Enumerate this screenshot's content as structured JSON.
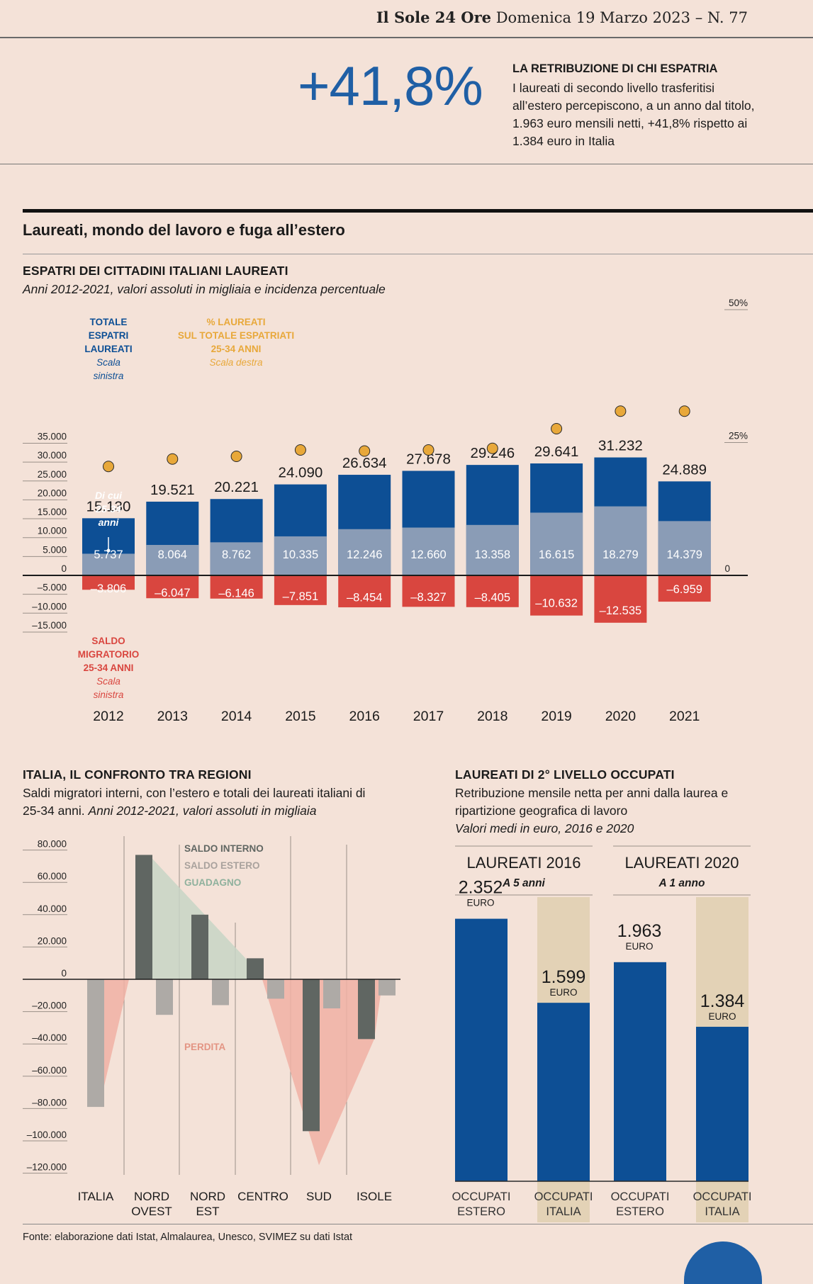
{
  "masthead": {
    "brand": "Il Sole 24 Ore",
    "date": "Domenica 19 Marzo 2023",
    "issue": "– N. 77"
  },
  "headline": {
    "number": "+41,8%",
    "title": "LA RETRIBUZIONE DI CHI ESPATRIA",
    "body": "I laureati di secondo livello trasferitisi all’estero percepiscono, a un anno dal titolo, 1.963 euro mensili netti, +41,8% rispetto ai 1.384 euro in Italia"
  },
  "section_title": "Laureati, mondo del lavoro e fuga all’estero",
  "chart1_header": {
    "title": "ESPATRI DEI CITTADINI ITALIANI LAUREATI",
    "subtitle": "Anni 2012-2021, valori assoluti in migliaia e incidenza percentuale"
  },
  "chart2_header": {
    "title": "ITALIA, IL CONFRONTO TRA REGIONI",
    "subtitle": "Saldi migratori interni, con l’estero e totali dei laureati italiani di 25-34 anni.",
    "subtitle_italic": "Anni 2012-2021, valori assoluti in migliaia"
  },
  "chart3_header": {
    "title": "LAUREATI DI 2° LIVELLO OCCUPATI",
    "subtitle": "Retribuzione mensile netta per anni dalla laurea e ripartizione geografica di lavoro",
    "subtitle_italic": "Valori medi in euro, 2016 e 2020"
  },
  "footer": "Fonte: elaborazione dati Istat, Almalaurea, Unesco, SVIMEZ su dati Istat",
  "colors": {
    "dark_blue": "#0d4f95",
    "light_blue": "#8a9cb6",
    "red": "#d9463f",
    "orange": "#e8a83a",
    "dark_gray": "#606662",
    "light_gray": "#aeaaa6",
    "green": "#c7d5c6",
    "pink": "#f0b0a4",
    "tan": "#e3d2b6",
    "accent": "#1f5fa5"
  },
  "chart_data": [
    {
      "type": "bar",
      "categories": [
        "2012",
        "2013",
        "2014",
        "2015",
        "2016",
        "2017",
        "2018",
        "2019",
        "2020",
        "2021"
      ],
      "series": [
        {
          "name": "TOTALE ESPATRI LAUREATI",
          "values": [
            15130,
            19521,
            20221,
            24090,
            26634,
            27678,
            29246,
            29641,
            31232,
            24889
          ],
          "labels": [
            "15.130",
            "19.521",
            "20.221",
            "24.090",
            "26.634",
            "27.678",
            "29.246",
            "29.641",
            "31.232",
            "24.889"
          ]
        },
        {
          "name": "Di cui 25-34 anni",
          "values": [
            5737,
            8064,
            8762,
            10335,
            12246,
            12660,
            13358,
            16615,
            18279,
            14379
          ],
          "labels": [
            "5.737",
            "8.064",
            "8.762",
            "10.335",
            "12.246",
            "12.660",
            "13.358",
            "16.615",
            "18.279",
            "14.379"
          ]
        },
        {
          "name": "SALDO MIGRATORIO 25-34 ANNI",
          "values": [
            -3806,
            -6047,
            -6146,
            -7851,
            -8454,
            -8327,
            -8405,
            -10632,
            -12535,
            -6959
          ],
          "labels": [
            "–3.806",
            "–6.047",
            "–6.146",
            "–7.851",
            "–8.454",
            "–8.327",
            "–8.405",
            "–10.632",
            "–12.535",
            "–6.959"
          ]
        },
        {
          "name": "% LAUREATI SUL TOTALE ESPATRIATI 25-34 ANNI",
          "values": [
            20.5,
            21.9,
            22.4,
            23.6,
            23.4,
            23.6,
            23.9,
            27.6,
            30.9,
            30.9
          ]
        }
      ],
      "left_axis": {
        "ticks": [
          "35.000",
          "30.000",
          "25.000",
          "20.000",
          "15.000",
          "10.000",
          "5.000",
          "0",
          "–5.000",
          "–10.000",
          "–15.000"
        ],
        "min": -15000,
        "max": 35000
      },
      "right_axis": {
        "ticks": [
          "50%",
          "25%",
          "0"
        ],
        "min": 0,
        "max": 50
      },
      "legend": {
        "total": [
          "TOTALE",
          "ESPATRI",
          "LAUREATI"
        ],
        "total_note": [
          "Scala",
          "sinistra"
        ],
        "pct": [
          "% LAUREATI",
          "SUL TOTALE ESPATRIATI",
          "25-34 ANNI"
        ],
        "pct_note": "Scala destra",
        "young": [
          "Di cui",
          "25-34",
          "anni"
        ],
        "saldo": [
          "SALDO",
          "MIGRATORIO",
          "25-34 ANNI"
        ],
        "saldo_note": [
          "Scala",
          "sinistra"
        ]
      }
    },
    {
      "type": "bar",
      "categories": [
        [
          "ITALIA"
        ],
        [
          "NORD",
          "OVEST"
        ],
        [
          "NORD",
          "EST"
        ],
        [
          "CENTRO"
        ],
        [
          "SUD"
        ],
        [
          "ISOLE"
        ]
      ],
      "series": [
        {
          "name": "SALDO INTERNO",
          "values": [
            0,
            77000,
            40000,
            13000,
            -94000,
            -37000
          ]
        },
        {
          "name": "SALDO ESTERO",
          "values": [
            -79000,
            -22000,
            -16000,
            -12000,
            -18000,
            -10000
          ]
        },
        {
          "name": "GUADAGNO"
        },
        {
          "name": "PERDITA"
        }
      ],
      "y_axis": {
        "ticks": [
          "80.000",
          "60.000",
          "40.000",
          "20.000",
          "0",
          "–20.000",
          "–40.000",
          "–60.000",
          "–80.000",
          "–100.000",
          "–120.000"
        ],
        "min": -120000,
        "max": 80000
      }
    },
    {
      "type": "bar",
      "groups": [
        {
          "title": "LAUREATI 2016",
          "subtitle": "A 5 anni"
        },
        {
          "title": "LAUREATI 2020",
          "subtitle": "A 1 anno"
        }
      ],
      "categories": [
        [
          "OCCUPATI",
          "ESTERO"
        ],
        [
          "OCCUPATI",
          "ITALIA"
        ],
        [
          "OCCUPATI",
          "ESTERO"
        ],
        [
          "OCCUPATI",
          "ITALIA"
        ]
      ],
      "values": [
        2352,
        1599,
        1963,
        1384
      ],
      "labels": [
        "2.352",
        "1.599",
        "1.963",
        "1.384"
      ],
      "unit": "EURO"
    }
  ]
}
